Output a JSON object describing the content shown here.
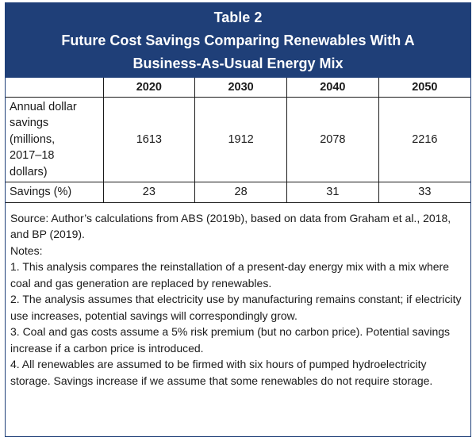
{
  "table": {
    "title_line1": "Table 2",
    "title_line2": "Future Cost Savings Comparing Renewables With A",
    "title_line3": "Business-As-Usual Energy Mix",
    "columns": [
      "",
      "2020",
      "2030",
      "2040",
      "2050"
    ],
    "rows": [
      {
        "label_lines": [
          "Annual dollar",
          "savings",
          "(millions,",
          "2017–18",
          "dollars)"
        ],
        "values": [
          "1613",
          "1912",
          "2078",
          "2216"
        ]
      },
      {
        "label_lines": [
          "Savings (%)"
        ],
        "values": [
          "23",
          "28",
          "31",
          "33"
        ]
      }
    ]
  },
  "notes": {
    "source": "Source: Author’s calculations from ABS (2019b), based on data from Graham et al., 2018, and BP (2019).",
    "heading": "Notes:",
    "items": [
      "1. This analysis compares the reinstallation of a present-day energy mix with a mix where coal and gas generation are replaced by renewables.",
      "2. The analysis assumes that electricity use by manufacturing remains constant; if electricity use increases, potential savings will correspondingly grow.",
      "3. Coal and gas costs assume a 5% risk premium (but no carbon price). Potential savings increase if a carbon price is introduced.",
      "4. All renewables are assumed to be firmed with six hours of pumped hydroelectricity storage. Savings increase if we assume that some renewables do not require storage."
    ]
  }
}
